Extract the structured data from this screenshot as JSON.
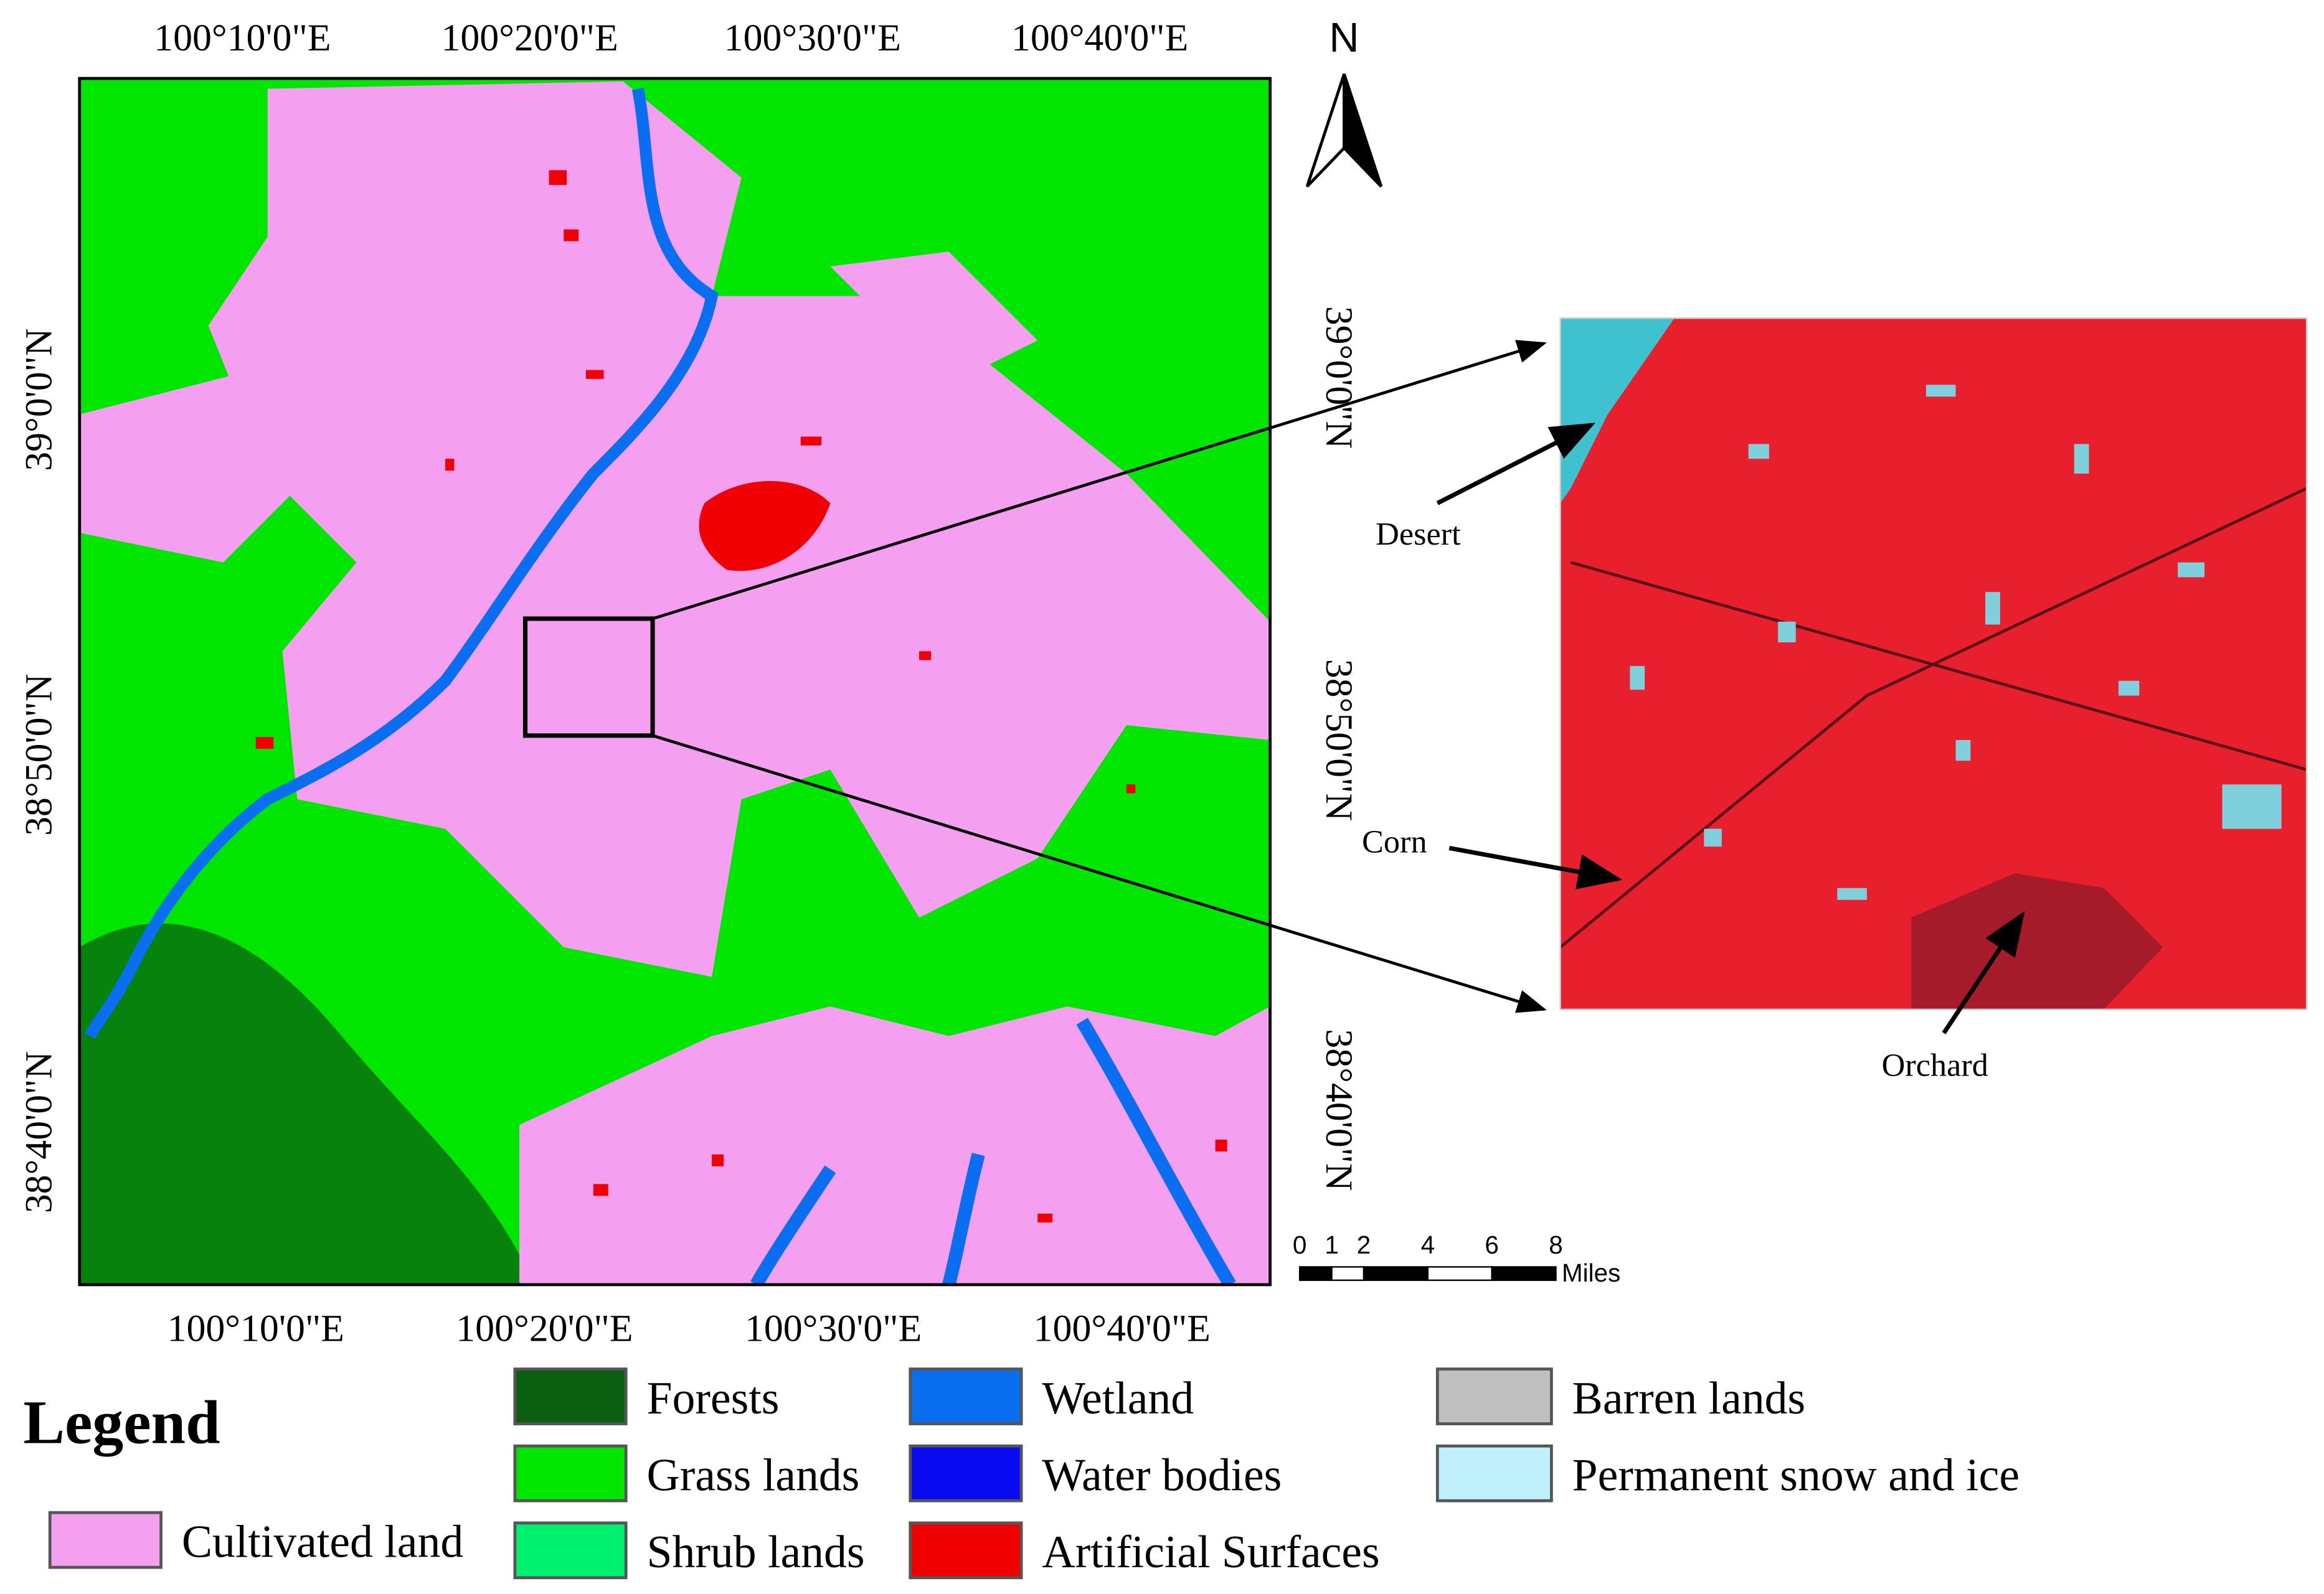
{
  "map": {
    "top_longitudes": [
      "100°10'0\"E",
      "100°20'0\"E",
      "100°30'0\"E",
      "100°40'0\"E"
    ],
    "bottom_longitudes": [
      "100°10'0\"E",
      "100°20'0\"E",
      "100°30'0\"E",
      "100°40'0\"E"
    ],
    "left_latitudes": [
      "39°0'0\"N",
      "38°50'0\"N",
      "38°40'0\"N"
    ],
    "right_latitudes": [
      "39°0'0\"N",
      "38°50'0\"N",
      "38°40'0\"N"
    ],
    "north": "N",
    "scale_bar": {
      "ticks": [
        0,
        1,
        2,
        4,
        6,
        8
      ],
      "unit": "Miles"
    },
    "inset_labels": [
      "Desert",
      "Corn",
      "Orchard"
    ]
  },
  "legend": {
    "title": "Legend",
    "items": [
      {
        "label": "Cultivated land",
        "color": "#f59ff0"
      },
      {
        "label": "Forests",
        "color": "#0a6010"
      },
      {
        "label": "Grass lands",
        "color": "#00e600"
      },
      {
        "label": "Shrub lands",
        "color": "#00f070"
      },
      {
        "label": "Wetland",
        "color": "#0a6ef0"
      },
      {
        "label": "Water bodies",
        "color": "#0a0af0"
      },
      {
        "label": "Artificial Surfaces",
        "color": "#f00000"
      },
      {
        "label": "Barren lands",
        "color": "#bfbfbf"
      },
      {
        "label": "Permanent snow and ice",
        "color": "#bff0fb"
      }
    ]
  }
}
